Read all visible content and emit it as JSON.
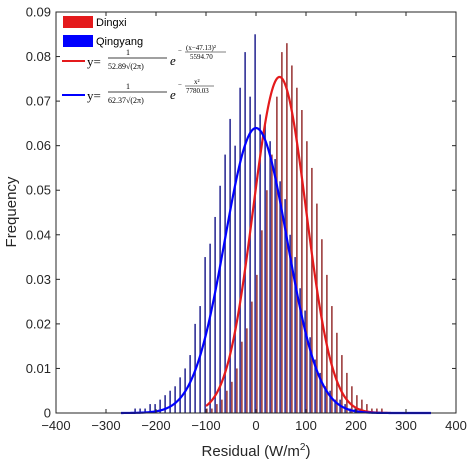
{
  "chart_data": {
    "type": "histogram",
    "xlabel": "Residual (W/m",
    "xlabel_sup": "2",
    "xlabel_tail": ")",
    "ylabel": "Frequency",
    "xlim": [
      -400,
      400
    ],
    "ylim": [
      0,
      0.09
    ],
    "x_ticks": [
      -400,
      -300,
      -200,
      -100,
      0,
      100,
      200,
      300,
      400
    ],
    "y_ticks": [
      0,
      0.01,
      0.02,
      0.03,
      0.04,
      0.05,
      0.06,
      0.07,
      0.08,
      0.09
    ],
    "x_tick_labels": [
      "−400",
      "−300",
      "−200",
      "−100",
      "0",
      "100",
      "200",
      "300",
      "400"
    ],
    "y_tick_labels": [
      "0",
      "0.01",
      "0.02",
      "0.03",
      "0.04",
      "0.05",
      "0.06",
      "0.07",
      "0.08",
      "0.09"
    ],
    "bin_width": 10,
    "bin_centers": [
      -260,
      -250,
      -240,
      -230,
      -220,
      -210,
      -200,
      -190,
      -180,
      -170,
      -160,
      -150,
      -140,
      -130,
      -120,
      -110,
      -100,
      -90,
      -80,
      -70,
      -60,
      -50,
      -40,
      -30,
      -20,
      -10,
      0,
      10,
      20,
      30,
      40,
      50,
      60,
      70,
      80,
      90,
      100,
      110,
      120,
      130,
      140,
      150,
      160,
      170,
      180,
      190,
      200,
      210,
      220,
      230,
      240,
      250,
      260,
      270,
      280,
      290,
      300,
      310,
      320,
      330,
      340,
      350
    ],
    "grid": false,
    "legend_position": "top-left",
    "series": [
      {
        "name": "Dingxi",
        "color": "#e41a1c",
        "values": [
          0,
          0,
          0,
          0,
          0,
          0,
          0,
          0,
          0,
          0,
          0,
          0,
          0,
          0,
          0,
          0,
          0.001,
          0.001,
          0.002,
          0.003,
          0.005,
          0.007,
          0.01,
          0.016,
          0.019,
          0.025,
          0.031,
          0.041,
          0.05,
          0.058,
          0.071,
          0.081,
          0.083,
          0.078,
          0.073,
          0.068,
          0.061,
          0.055,
          0.047,
          0.039,
          0.031,
          0.024,
          0.018,
          0.013,
          0.009,
          0.006,
          0.004,
          0.003,
          0.002,
          0.001,
          0.001,
          0.001,
          0,
          0,
          0,
          0,
          0,
          0,
          0,
          0,
          0,
          0
        ],
        "fit": {
          "mu": 47.13,
          "sigma": 52.89,
          "legend_line": "y="
        }
      },
      {
        "name": "Qingyang",
        "color": "#0000ff",
        "values": [
          0,
          0,
          0.001,
          0.001,
          0.001,
          0.002,
          0.002,
          0.003,
          0.004,
          0.005,
          0.006,
          0.008,
          0.01,
          0.013,
          0.02,
          0.024,
          0.035,
          0.038,
          0.044,
          0.051,
          0.058,
          0.066,
          0.06,
          0.073,
          0.081,
          0.071,
          0.085,
          0.067,
          0.065,
          0.061,
          0.057,
          0.052,
          0.048,
          0.04,
          0.035,
          0.028,
          0.023,
          0.017,
          0.012,
          0.009,
          0.006,
          0.005,
          0.003,
          0.003,
          0.002,
          0.001,
          0.001,
          0.001,
          0,
          0,
          0,
          0,
          0,
          0,
          0,
          0,
          0,
          0,
          0,
          0,
          0,
          0
        ],
        "fit": {
          "mu": 0,
          "sigma": 62.37,
          "legend_line": "y="
        }
      }
    ]
  }
}
